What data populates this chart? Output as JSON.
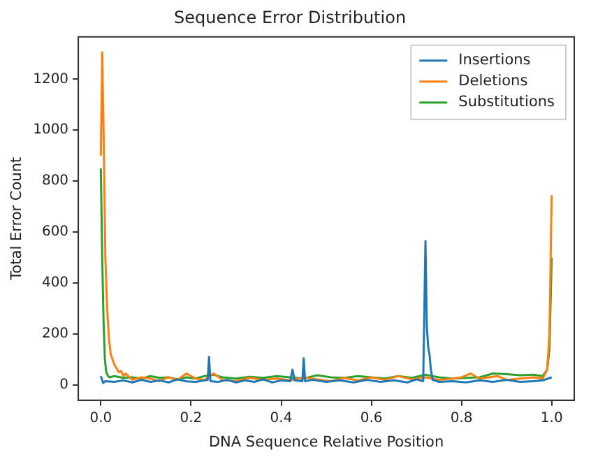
{
  "chart_data": {
    "type": "line",
    "title": "Sequence Error Distribution",
    "xlabel": "DNA Sequence Relative Position",
    "ylabel": "Total Error Count",
    "xlim": [
      -0.05,
      1.05
    ],
    "ylim": [
      -60,
      1366
    ],
    "xticks": [
      {
        "value": 0,
        "label": "0.0"
      },
      {
        "value": 0.2,
        "label": "0.2"
      },
      {
        "value": 0.4,
        "label": "0.4"
      },
      {
        "value": 0.6,
        "label": "0.6"
      },
      {
        "value": 0.8,
        "label": "0.8"
      },
      {
        "value": 1,
        "label": "1.0"
      }
    ],
    "yticks": [
      0,
      200,
      400,
      600,
      800,
      1000,
      1200
    ],
    "grid": false,
    "legend": "top right",
    "marker": "none",
    "line_style": "solid",
    "series": [
      {
        "name": "Insertions",
        "color": "#1f77b4",
        "x": [
          0,
          0.005,
          0.01,
          0.03,
          0.05,
          0.07,
          0.09,
          0.11,
          0.13,
          0.15,
          0.17,
          0.19,
          0.21,
          0.23,
          0.237,
          0.24,
          0.243,
          0.26,
          0.28,
          0.3,
          0.32,
          0.34,
          0.36,
          0.38,
          0.4,
          0.42,
          0.425,
          0.43,
          0.447,
          0.45,
          0.453,
          0.47,
          0.5,
          0.53,
          0.56,
          0.59,
          0.62,
          0.65,
          0.68,
          0.7,
          0.715,
          0.72,
          0.723,
          0.726,
          0.729,
          0.732,
          0.736,
          0.75,
          0.78,
          0.81,
          0.84,
          0.87,
          0.9,
          0.93,
          0.96,
          0.98,
          1.0
        ],
        "values": [
          35,
          8,
          15,
          12,
          18,
          10,
          20,
          12,
          18,
          10,
          22,
          14,
          12,
          18,
          20,
          110,
          15,
          12,
          20,
          10,
          18,
          12,
          22,
          10,
          18,
          15,
          60,
          18,
          15,
          105,
          15,
          20,
          12,
          18,
          10,
          20,
          12,
          18,
          10,
          22,
          15,
          565,
          230,
          150,
          120,
          60,
          20,
          12,
          15,
          10,
          18,
          12,
          20,
          12,
          15,
          18,
          30
        ]
      },
      {
        "name": "Deletions",
        "color": "#ff7f0e",
        "x": [
          0,
          0.003,
          0.006,
          0.01,
          0.014,
          0.018,
          0.022,
          0.026,
          0.03,
          0.035,
          0.04,
          0.045,
          0.05,
          0.055,
          0.07,
          0.09,
          0.11,
          0.13,
          0.15,
          0.17,
          0.19,
          0.21,
          0.23,
          0.25,
          0.27,
          0.3,
          0.33,
          0.36,
          0.39,
          0.42,
          0.45,
          0.48,
          0.51,
          0.54,
          0.57,
          0.6,
          0.63,
          0.66,
          0.69,
          0.72,
          0.75,
          0.78,
          0.8,
          0.82,
          0.84,
          0.86,
          0.88,
          0.9,
          0.93,
          0.96,
          0.98,
          0.99,
          0.995,
          1.0
        ],
        "values": [
          900,
          1305,
          1000,
          500,
          300,
          180,
          120,
          100,
          80,
          65,
          50,
          55,
          35,
          45,
          20,
          30,
          25,
          15,
          30,
          20,
          45,
          25,
          20,
          45,
          20,
          15,
          28,
          20,
          25,
          18,
          30,
          22,
          15,
          28,
          18,
          30,
          20,
          35,
          22,
          30,
          20,
          25,
          30,
          45,
          25,
          30,
          35,
          20,
          25,
          30,
          25,
          60,
          200,
          745
        ]
      },
      {
        "name": "Substitutions",
        "color": "#2ca02c",
        "x": [
          0,
          0.003,
          0.006,
          0.009,
          0.012,
          0.016,
          0.02,
          0.03,
          0.05,
          0.07,
          0.09,
          0.11,
          0.13,
          0.15,
          0.17,
          0.19,
          0.21,
          0.23,
          0.25,
          0.27,
          0.3,
          0.33,
          0.36,
          0.39,
          0.42,
          0.45,
          0.48,
          0.51,
          0.54,
          0.57,
          0.6,
          0.63,
          0.66,
          0.69,
          0.72,
          0.75,
          0.78,
          0.81,
          0.84,
          0.87,
          0.9,
          0.93,
          0.96,
          0.98,
          0.99,
          0.995,
          1.0
        ],
        "values": [
          850,
          500,
          250,
          100,
          50,
          35,
          30,
          35,
          28,
          30,
          25,
          35,
          28,
          30,
          22,
          30,
          25,
          35,
          40,
          30,
          25,
          32,
          28,
          35,
          30,
          25,
          38,
          30,
          28,
          35,
          30,
          25,
          35,
          28,
          40,
          30,
          25,
          28,
          30,
          45,
          42,
          38,
          40,
          35,
          60,
          140,
          500
        ]
      }
    ]
  }
}
